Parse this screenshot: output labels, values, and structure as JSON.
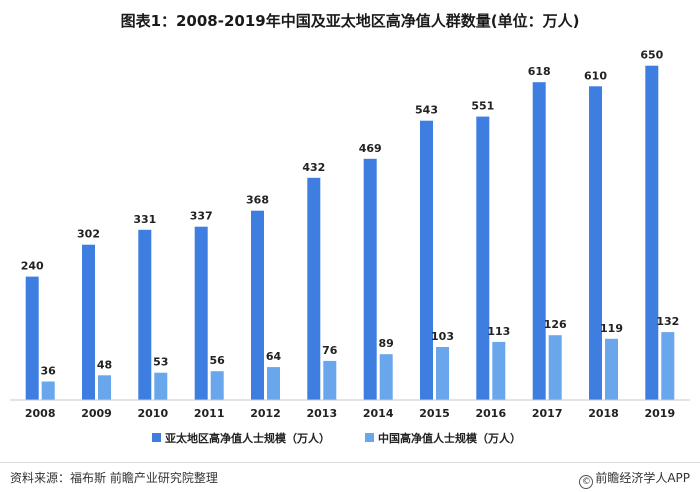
{
  "title": "图表1：2008-2019年中国及亚太地区高净值人群数量(单位：万人)",
  "footer": {
    "source": "资料来源：福布斯 前瞻产业研究院整理",
    "brand_icon": "©",
    "brand": "前瞻经济学人APP"
  },
  "colors": {
    "series_1": "#3d7ee0",
    "series_2": "#6aa6ec",
    "axis": "#c8c8c8"
  },
  "chart_data": {
    "type": "bar",
    "categories": [
      "2008",
      "2009",
      "2010",
      "2011",
      "2012",
      "2013",
      "2014",
      "2015",
      "2016",
      "2017",
      "2018",
      "2019"
    ],
    "series": [
      {
        "name": "亚太地区高净值人士规模（万人）",
        "values": [
          240,
          302,
          331,
          337,
          368,
          432,
          469,
          543,
          551,
          618,
          610,
          650
        ]
      },
      {
        "name": "中国高净值人士规模（万人）",
        "values": [
          36,
          48,
          53,
          56,
          64,
          76,
          89,
          103,
          113,
          126,
          119,
          132
        ]
      }
    ],
    "ylim": [
      0,
      700
    ],
    "grid": false,
    "legend_position": "bottom"
  }
}
